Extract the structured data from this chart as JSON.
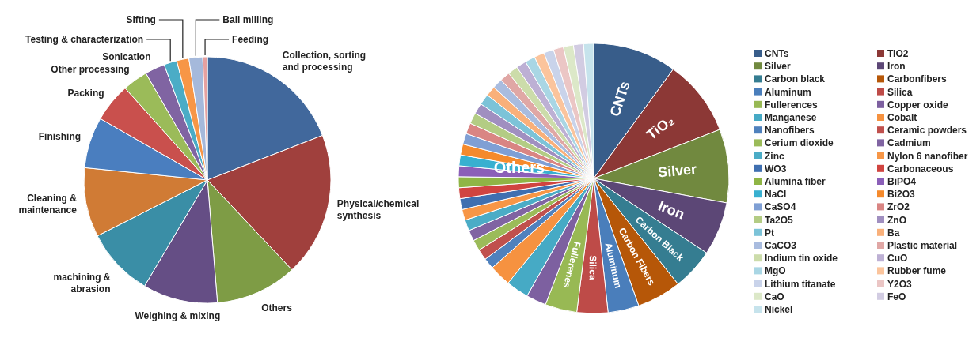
{
  "chart_data": [
    {
      "type": "pie",
      "categories": [
        "Collection, sorting and processing",
        "Physical/chemical synthesis",
        "Others",
        "Weighing & mixing",
        "machining & abrasion",
        "Cleaning & maintenance",
        "Finishing",
        "Packing",
        "Other processing",
        "Sonication",
        "Testing & characterization",
        "Sifting",
        "Ball milling",
        "Feeding"
      ],
      "values": [
        19.1,
        18.9,
        10.7,
        9.8,
        9.0,
        9.1,
        6.7,
        5.1,
        3.3,
        2.6,
        1.7,
        1.6,
        1.8,
        0.6
      ],
      "colors": [
        "#41689c",
        "#a0403d",
        "#7e9c45",
        "#654e85",
        "#3a8ea6",
        "#d07b35",
        "#4a7ebf",
        "#c9504d",
        "#9bbb59",
        "#8064a2",
        "#4bacc6",
        "#f79646",
        "#a5b9db",
        "#e6a1a0"
      ]
    },
    {
      "type": "pie",
      "categories": [
        "CNTs",
        "TiO2",
        "Silver",
        "Iron",
        "Carbon black",
        "Carbonfibers",
        "Aluminum",
        "Silica",
        "Fullerences",
        "Copper oxide",
        "Manganese",
        "Cobalt",
        "Nanofibers",
        "Ceramic powders",
        "Cerium dioxide",
        "Cadmium",
        "Zinc",
        "Nylon 6 nanofiber",
        "WO3",
        "Carbonaceous",
        "Alumina fiber",
        "BiPO4",
        "NaCl",
        "Bi2O3",
        "CaSO4",
        "ZrO2",
        "Ta2O5",
        "ZnO",
        "Pt",
        "Ba",
        "CaCO3",
        "Plastic material",
        "Indium tin oxide",
        "CuO",
        "MgO",
        "Rubber fume",
        "Lithium titanate",
        "Y2O3",
        "CaO",
        "FeO",
        "Nickel"
      ],
      "values": [
        10.0,
        9.1,
        8.8,
        6.4,
        5.0,
        5.3,
        3.7,
        3.7,
        3.8,
        2.4,
        2.7,
        2.6,
        1.3,
        1.3,
        1.3,
        1.3,
        1.3,
        1.3,
        1.3,
        1.3,
        1.3,
        1.3,
        1.3,
        1.3,
        1.3,
        1.3,
        1.3,
        1.3,
        1.3,
        1.2,
        1.2,
        1.2,
        1.2,
        1.2,
        1.2,
        1.2,
        1.2,
        1.2,
        1.2,
        1.2,
        1.2
      ],
      "colors": [
        "#385d8a",
        "#8c3836",
        "#71893f",
        "#5c4776",
        "#357d91",
        "#b65708",
        "#4a7ebb",
        "#be4b48",
        "#98b954",
        "#7d60a0",
        "#46aac5",
        "#f69240",
        "#4f81bd",
        "#c0504d",
        "#9bbb59",
        "#8064a2",
        "#4bacc6",
        "#f79646",
        "#3f6fb0",
        "#d04440",
        "#8fb545",
        "#8b5fb8",
        "#38b0d0",
        "#f58a2c",
        "#7f9fd4",
        "#d98583",
        "#b3cc84",
        "#a08fc0",
        "#7cc3d8",
        "#f9b07a",
        "#a9bcdf",
        "#e0a7a5",
        "#ccdcaa",
        "#bdb0d4",
        "#a9d6e4",
        "#fbc49c",
        "#c9d3ea",
        "#ebc6c5",
        "#dce8c8",
        "#d2cce2",
        "#c6e3ec"
      ],
      "legend": "right",
      "annotations": [
        {
          "text": "CNTs",
          "x": "CNTs"
        },
        {
          "text": "TiO₂",
          "x": "TiO2"
        },
        {
          "text": "Silver",
          "x": "Silver"
        },
        {
          "text": "Iron",
          "x": "Iron"
        },
        {
          "text": "Carbon Black",
          "x": "Carbon black"
        },
        {
          "text": "Carbon Fibers",
          "x": "Carbonfibers"
        },
        {
          "text": "Aluminum",
          "x": "Aluminum"
        },
        {
          "text": "Silica",
          "x": "Silica"
        },
        {
          "text": "Fullerenes",
          "x": "Fullerences"
        },
        "Others"
      ]
    }
  ]
}
